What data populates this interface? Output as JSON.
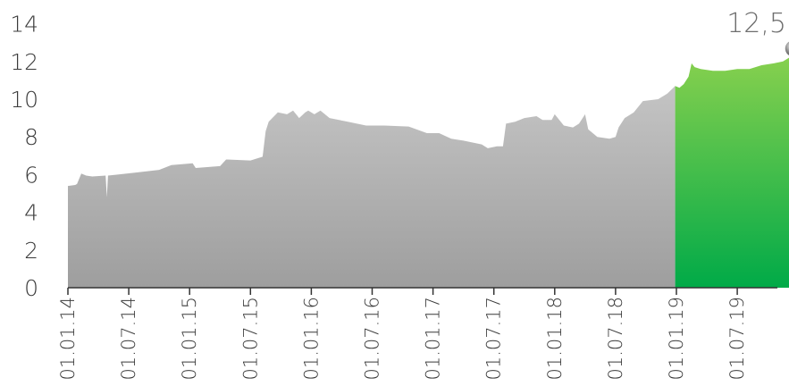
{
  "chart_data": {
    "type": "area",
    "title": "",
    "xlabel": "",
    "ylabel": "",
    "ylim": [
      0,
      14
    ],
    "y_ticks": [
      0,
      2,
      4,
      6,
      8,
      10,
      12,
      14
    ],
    "y_tick_labels": [
      "0",
      "2",
      "4",
      "6",
      "8",
      "10",
      "12",
      "14"
    ],
    "x_tick_labels": [
      "01.01.14",
      "01.07.14",
      "01.01.15",
      "01.07.15",
      "01.01.16",
      "01.07.16",
      "01.01.17",
      "01.07.17",
      "01.01.18",
      "01.07.18",
      "01.01.19",
      "01.07.19"
    ],
    "grid": false,
    "end_label": "12,5",
    "colors": {
      "history_top": "#c4c4c4",
      "history_bottom": "#9e9e9e",
      "current_top": "#8ad14e",
      "current_bottom": "#00aa48",
      "axis": "#333333",
      "marker": "#777777"
    },
    "series": [
      {
        "values": [
          [
            0.0,
            5.4
          ],
          [
            0.12,
            5.45
          ],
          [
            0.15,
            5.5
          ],
          [
            0.22,
            6.05
          ],
          [
            0.3,
            5.95
          ],
          [
            0.4,
            5.9
          ],
          [
            0.62,
            5.95
          ],
          [
            0.64,
            4.8
          ],
          [
            0.66,
            5.95
          ],
          [
            1.1,
            6.1
          ],
          [
            1.5,
            6.25
          ],
          [
            1.7,
            6.5
          ],
          [
            2.05,
            6.6
          ],
          [
            2.1,
            6.35
          ],
          [
            2.5,
            6.45
          ],
          [
            2.6,
            6.8
          ],
          [
            3.0,
            6.75
          ],
          [
            3.2,
            6.95
          ],
          [
            3.25,
            8.3
          ],
          [
            3.3,
            8.8
          ],
          [
            3.45,
            9.3
          ],
          [
            3.6,
            9.2
          ],
          [
            3.7,
            9.4
          ],
          [
            3.8,
            9.0
          ],
          [
            3.9,
            9.3
          ],
          [
            3.95,
            9.4
          ],
          [
            4.05,
            9.2
          ],
          [
            4.15,
            9.4
          ],
          [
            4.3,
            9.0
          ],
          [
            4.6,
            8.8
          ],
          [
            4.9,
            8.6
          ],
          [
            5.2,
            8.6
          ],
          [
            5.6,
            8.55
          ],
          [
            5.9,
            8.2
          ],
          [
            6.1,
            8.2
          ],
          [
            6.3,
            7.9
          ],
          [
            6.5,
            7.8
          ],
          [
            6.8,
            7.6
          ],
          [
            6.9,
            7.4
          ],
          [
            7.05,
            7.5
          ],
          [
            7.15,
            7.5
          ],
          [
            7.2,
            8.7
          ],
          [
            7.35,
            8.8
          ],
          [
            7.5,
            9.0
          ],
          [
            7.7,
            9.1
          ],
          [
            7.8,
            8.9
          ],
          [
            7.95,
            8.9
          ],
          [
            8.0,
            9.2
          ],
          [
            8.15,
            8.6
          ],
          [
            8.3,
            8.5
          ],
          [
            8.4,
            8.7
          ],
          [
            8.5,
            9.2
          ],
          [
            8.55,
            8.4
          ],
          [
            8.7,
            8.0
          ],
          [
            8.9,
            7.9
          ],
          [
            9.0,
            8.0
          ],
          [
            9.05,
            8.5
          ],
          [
            9.15,
            9.0
          ],
          [
            9.3,
            9.3
          ],
          [
            9.45,
            9.9
          ],
          [
            9.7,
            10.0
          ],
          [
            9.85,
            10.3
          ],
          [
            9.98,
            10.7
          ]
        ]
      },
      {
        "values": [
          [
            9.98,
            10.7
          ],
          [
            10.05,
            10.6
          ],
          [
            10.12,
            10.8
          ],
          [
            10.2,
            11.2
          ],
          [
            10.25,
            11.9
          ],
          [
            10.3,
            11.7
          ],
          [
            10.4,
            11.6
          ],
          [
            10.6,
            11.5
          ],
          [
            10.8,
            11.5
          ],
          [
            11.0,
            11.6
          ],
          [
            11.2,
            11.6
          ],
          [
            11.4,
            11.8
          ],
          [
            11.6,
            11.9
          ],
          [
            11.75,
            12.0
          ],
          [
            11.85,
            12.2
          ],
          [
            11.92,
            12.5
          ]
        ]
      }
    ]
  }
}
